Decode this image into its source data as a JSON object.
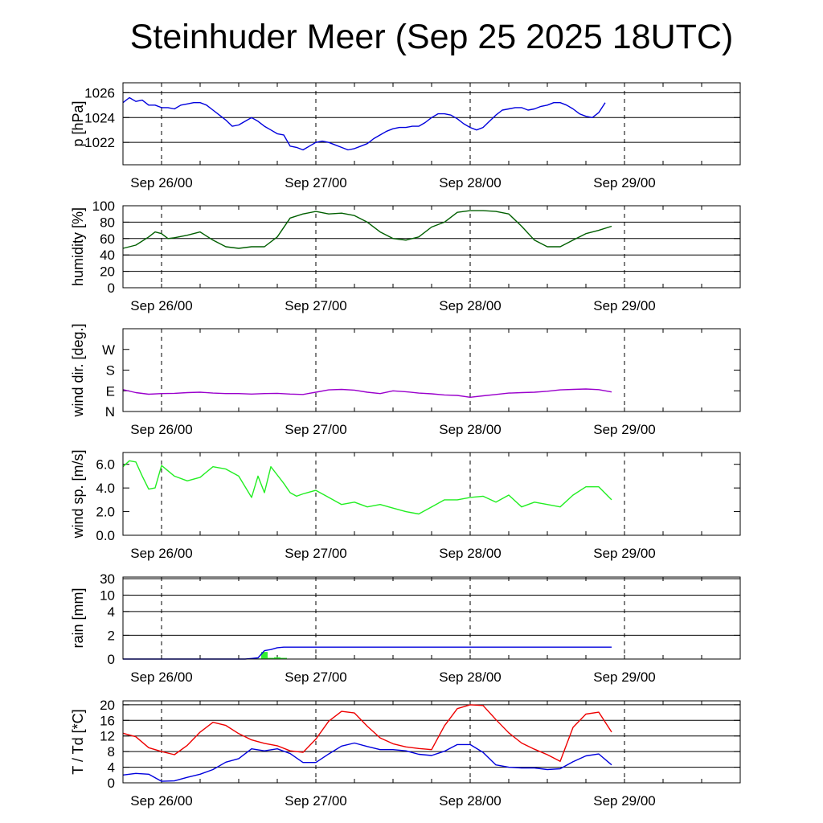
{
  "title": "Steinhuder Meer (Sep 25 2025 18UTC)",
  "colors": {
    "pressure": "#0000dd",
    "humidity": "#005f00",
    "wind_dir": "#9a00cc",
    "wind_speed": "#22ee22",
    "rain_bar": "#33ee33",
    "rain_cum": "#0000dd",
    "temperature": "#ee0000",
    "dewpoint": "#0000dd"
  },
  "chart_data": [
    {
      "type": "line",
      "ylabel": "p [hPa]",
      "x_ticks": [
        "Sep 26/00",
        "Sep 27/00",
        "Sep 28/00",
        "Sep 29/00"
      ],
      "x_unit": "hours since Sep 25 18UTC",
      "xlim": [
        0,
        96
      ],
      "ylim": [
        1020.2,
        1026.8
      ],
      "y_ticks": [
        "1022",
        "1024",
        "1026"
      ],
      "y_tick_values": [
        1022,
        1024,
        1026
      ],
      "grid": [
        1022,
        1024,
        1026
      ],
      "series": [
        {
          "color_key": "pressure",
          "x": [
            0,
            1,
            2,
            3,
            4,
            5,
            6,
            7,
            8,
            9,
            10,
            11,
            12,
            13,
            14,
            15,
            16,
            17,
            18,
            19,
            20,
            21,
            22,
            23,
            24,
            25,
            26,
            27,
            28,
            29,
            30,
            31,
            32,
            33,
            34,
            35,
            36,
            37,
            38,
            39,
            40,
            41,
            42,
            43,
            44,
            45,
            46,
            47,
            48,
            49,
            50,
            51,
            52,
            53,
            54,
            55,
            56,
            57,
            58,
            59,
            60,
            61,
            62,
            63,
            64,
            65,
            66,
            67,
            68,
            69,
            70,
            71,
            72,
            73,
            74,
            75,
            76,
            77,
            78,
            79,
            80,
            81,
            82,
            83,
            84,
            85,
            86,
            87,
            88,
            89,
            90,
            91,
            92,
            93,
            94,
            95,
            96
          ],
          "y": [
            1025.2,
            1025.6,
            1025.3,
            1025.4,
            1025.0,
            1025.0,
            1024.8,
            1024.8,
            1024.7,
            1025.0,
            1025.1,
            1025.2,
            1025.2,
            1025.0,
            1024.6,
            1024.2,
            1023.8,
            1023.3,
            1023.4,
            1023.7,
            1024.0,
            1023.7,
            1023.3,
            1023.0,
            1022.7,
            1022.6,
            1021.7,
            1021.6,
            1021.4,
            1021.7,
            1022.0,
            1022.1,
            1022.0,
            1021.8,
            1021.6,
            1021.4,
            1021.5,
            1021.7,
            1021.9,
            1022.3,
            1022.6,
            1022.9,
            1023.1,
            1023.2,
            1023.2,
            1023.3,
            1023.3,
            1023.6,
            1024.0,
            1024.3,
            1024.3,
            1024.2,
            1023.9,
            1023.5,
            1023.2,
            1023.0,
            1023.2,
            1023.7,
            1024.2,
            1024.6,
            1024.7,
            1024.8,
            1024.8,
            1024.6,
            1024.7,
            1024.9,
            1025.0,
            1025.2,
            1025.2,
            1025.0,
            1024.7,
            1024.3,
            1024.1,
            1024.0,
            1024.4,
            1025.2,
            null,
            null,
            null,
            null,
            null,
            null,
            null,
            null,
            null,
            null,
            null,
            null,
            null,
            null,
            null,
            null,
            null,
            null,
            null,
            null,
            null
          ]
        }
      ]
    },
    {
      "type": "line",
      "ylabel": "humidity [%]",
      "x_ticks": [
        "Sep 26/00",
        "Sep 27/00",
        "Sep 28/00",
        "Sep 29/00"
      ],
      "xlim": [
        0,
        96
      ],
      "ylim": [
        0,
        100
      ],
      "y_ticks": [
        "0",
        "20",
        "40",
        "60",
        "80",
        "100"
      ],
      "y_tick_values": [
        0,
        20,
        40,
        60,
        80,
        100
      ],
      "grid": [
        20,
        40,
        60,
        80,
        100
      ],
      "series": [
        {
          "color_key": "humidity",
          "x": [
            0,
            2,
            4,
            5,
            6,
            7,
            8,
            10,
            12,
            14,
            16,
            18,
            20,
            22,
            24,
            26,
            28,
            30,
            32,
            34,
            36,
            38,
            40,
            42,
            44,
            46,
            48,
            50,
            52,
            54,
            56,
            58,
            60,
            62,
            64,
            66,
            68,
            70,
            72,
            74,
            76
          ],
          "y": [
            48,
            52,
            62,
            68,
            66,
            60,
            61,
            64,
            68,
            58,
            50,
            48,
            50,
            50,
            62,
            85,
            90,
            93,
            90,
            91,
            88,
            80,
            68,
            60,
            58,
            62,
            74,
            80,
            92,
            94,
            94,
            93,
            90,
            75,
            58,
            50,
            50,
            58,
            66,
            70,
            75
          ]
        }
      ]
    },
    {
      "type": "line",
      "ylabel": "wind dir. [deg.]",
      "x_ticks": [
        "Sep 26/00",
        "Sep 27/00",
        "Sep 28/00",
        "Sep 29/00"
      ],
      "xlim": [
        0,
        96
      ],
      "ylim": [
        0,
        360
      ],
      "y_ticks": [
        "N",
        "E",
        "S",
        "W"
      ],
      "y_tick_values": [
        0,
        90,
        180,
        270
      ],
      "series": [
        {
          "color_key": "wind_dir",
          "x": [
            0,
            2,
            4,
            6,
            8,
            10,
            12,
            14,
            16,
            18,
            20,
            22,
            24,
            26,
            28,
            30,
            32,
            34,
            36,
            38,
            40,
            42,
            44,
            46,
            48,
            50,
            52,
            54,
            56,
            58,
            60,
            62,
            64,
            66,
            68,
            70,
            72,
            74,
            76
          ],
          "y": [
            95,
            82,
            75,
            78,
            79,
            82,
            84,
            80,
            78,
            78,
            76,
            78,
            79,
            76,
            74,
            84,
            94,
            96,
            93,
            84,
            78,
            90,
            86,
            80,
            77,
            72,
            70,
            62,
            68,
            74,
            80,
            82,
            84,
            88,
            94,
            96,
            98,
            95,
            85
          ]
        }
      ]
    },
    {
      "type": "line",
      "ylabel": "wind sp. [m/s]",
      "x_ticks": [
        "Sep 26/00",
        "Sep 27/00",
        "Sep 28/00",
        "Sep 29/00"
      ],
      "xlim": [
        0,
        96
      ],
      "ylim": [
        0,
        7
      ],
      "y_ticks": [
        "0.0",
        "2.0",
        "4.0",
        "6.0"
      ],
      "y_tick_values": [
        0,
        2,
        4,
        6
      ],
      "series": [
        {
          "color_key": "wind_speed",
          "x": [
            0,
            1,
            2,
            3,
            4,
            5,
            6,
            8,
            10,
            12,
            14,
            16,
            18,
            20,
            21,
            22,
            23,
            24,
            25,
            26,
            27,
            28,
            30,
            32,
            34,
            36,
            38,
            40,
            42,
            44,
            46,
            48,
            50,
            52,
            54,
            56,
            58,
            60,
            62,
            64,
            66,
            68,
            70,
            72,
            74,
            76
          ],
          "y": [
            5.8,
            6.3,
            6.2,
            5.0,
            3.9,
            4.0,
            5.9,
            5.0,
            4.6,
            4.9,
            5.8,
            5.6,
            5.0,
            3.2,
            5.0,
            3.6,
            5.8,
            5.1,
            4.4,
            3.6,
            3.3,
            3.5,
            3.8,
            3.2,
            2.6,
            2.8,
            2.4,
            2.6,
            2.3,
            2.0,
            1.8,
            2.4,
            3.0,
            3.0,
            3.2,
            3.3,
            2.8,
            3.4,
            2.4,
            2.8,
            2.6,
            2.4,
            3.4,
            4.1,
            4.1,
            3.0
          ]
        }
      ]
    },
    {
      "type": "bar",
      "ylabel": "rain [mm]",
      "x_ticks": [
        "Sep 26/00",
        "Sep 27/00",
        "Sep 28/00",
        "Sep 29/00"
      ],
      "xlim": [
        0,
        96
      ],
      "y_scale": "nonlinear",
      "y_ticks": [
        "0",
        "2",
        "4",
        "10",
        "30"
      ],
      "y_tick_values": [
        0,
        2,
        4,
        10,
        30
      ],
      "grid": [
        2,
        4,
        10,
        30
      ],
      "bars": {
        "color_key": "rain_bar",
        "x": [
          21,
          22,
          23,
          24,
          25
        ],
        "values": [
          0.05,
          0.6,
          0.1,
          0.15,
          0.1
        ]
      },
      "series": [
        {
          "color_key": "rain_cum",
          "x": [
            0,
            19,
            20,
            21,
            22,
            23,
            24,
            25,
            76
          ],
          "y": [
            0,
            0,
            0.05,
            0.1,
            0.7,
            0.8,
            0.95,
            1.0,
            1.0
          ]
        }
      ]
    },
    {
      "type": "line",
      "ylabel": "T / Td [*C]",
      "x_ticks": [
        "Sep 26/00",
        "Sep 27/00",
        "Sep 28/00",
        "Sep 29/00"
      ],
      "xlim": [
        0,
        96
      ],
      "ylim": [
        0,
        21
      ],
      "y_ticks": [
        "0",
        "4",
        "8",
        "12",
        "16",
        "20"
      ],
      "y_tick_values": [
        0,
        4,
        8,
        12,
        16,
        20
      ],
      "grid": [
        4,
        8,
        12,
        16,
        20
      ],
      "series": [
        {
          "name": "T",
          "color_key": "temperature",
          "x": [
            0,
            2,
            4,
            6,
            8,
            10,
            12,
            14,
            16,
            18,
            20,
            22,
            24,
            26,
            28,
            30,
            32,
            34,
            36,
            38,
            40,
            42,
            44,
            46,
            48,
            50,
            52,
            54,
            56,
            58,
            60,
            62,
            64,
            66,
            68,
            70,
            72,
            74,
            76
          ],
          "y": [
            12.7,
            11.8,
            9.0,
            8.0,
            7.2,
            9.6,
            13.0,
            15.5,
            14.7,
            12.6,
            11.0,
            10.1,
            9.5,
            8.2,
            7.8,
            11.2,
            15.8,
            18.3,
            17.9,
            14.5,
            11.5,
            10.0,
            9.2,
            8.8,
            8.5,
            14.6,
            19.0,
            20.0,
            19.8,
            16.2,
            12.8,
            10.2,
            8.6,
            7.2,
            5.5,
            14.2,
            17.6,
            18.1,
            13.0
          ]
        },
        {
          "name": "Td",
          "color_key": "dewpoint",
          "x": [
            0,
            2,
            4,
            6,
            8,
            10,
            12,
            14,
            16,
            18,
            20,
            22,
            24,
            26,
            28,
            30,
            32,
            34,
            36,
            38,
            40,
            42,
            44,
            46,
            48,
            50,
            52,
            54,
            56,
            58,
            60,
            62,
            64,
            66,
            68,
            70,
            72,
            74,
            76
          ],
          "y": [
            2.0,
            2.4,
            2.2,
            0.4,
            0.5,
            1.4,
            2.2,
            3.4,
            5.3,
            6.2,
            8.7,
            8.2,
            8.7,
            7.5,
            5.2,
            5.2,
            7.4,
            9.4,
            10.2,
            9.3,
            8.5,
            8.5,
            8.2,
            7.3,
            7.0,
            8.1,
            9.8,
            9.8,
            7.8,
            4.6,
            4.0,
            3.8,
            3.8,
            3.4,
            3.6,
            5.4,
            6.9,
            7.4,
            4.6
          ]
        }
      ]
    }
  ]
}
